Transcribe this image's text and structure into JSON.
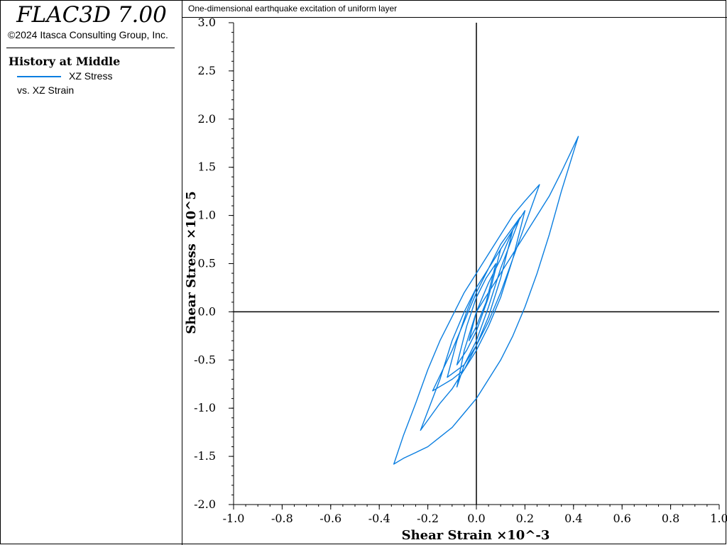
{
  "app": {
    "title": "FLAC3D 7.00",
    "copyright": "©2024 Itasca Consulting Group, Inc."
  },
  "legend": {
    "heading": "History at Middle",
    "series_label": "XZ Stress",
    "vs_label": "vs. XZ Strain",
    "color": "#0a7ee0"
  },
  "plot": {
    "title": "One-dimensional earthquake excitation of uniform layer"
  },
  "chart_data": {
    "type": "line",
    "title": "One-dimensional earthquake excitation of uniform layer",
    "xlabel": "Shear Strain ×10^-3",
    "ylabel": "Shear Stress ×10^5",
    "xlim": [
      -1.0,
      1.0
    ],
    "ylim": [
      -2.0,
      3.0
    ],
    "x_ticks": [
      -1.0,
      -0.8,
      -0.6,
      -0.4,
      -0.2,
      0.0,
      0.2,
      0.4,
      0.6,
      0.8,
      1.0
    ],
    "x_tick_labels": [
      "-1.0",
      "-0.8",
      "-0.6",
      "-0.4",
      "-0.2",
      "0.0",
      "0.2",
      "0.4",
      "0.6",
      "0.8",
      "1.0"
    ],
    "y_ticks": [
      3.0,
      2.5,
      2.0,
      1.5,
      1.0,
      0.5,
      0.0,
      -0.5,
      -1.0,
      -1.5,
      -2.0
    ],
    "y_tick_labels": [
      "3.0",
      "2.5",
      "2.0",
      "1.5",
      "1.0",
      "0.5",
      "0.0",
      "-0.5",
      "-1.0",
      "-1.5",
      "-2.0"
    ],
    "grid": false,
    "series": [
      {
        "name": "XZ Stress",
        "color": "#0a7ee0",
        "x": [
          0.0,
          0.05,
          0.1,
          0.15,
          0.2,
          0.25,
          0.3,
          0.35,
          0.42,
          0.35,
          0.3,
          0.25,
          0.2,
          0.15,
          0.1,
          0.05,
          0.0,
          -0.05,
          -0.1,
          -0.15,
          -0.2,
          -0.25,
          -0.3,
          -0.34,
          -0.3,
          -0.25,
          -0.2,
          -0.15,
          -0.1,
          -0.05,
          0.0,
          0.05,
          0.1,
          0.15,
          0.2,
          0.26,
          0.2,
          0.15,
          0.1,
          0.05,
          0.0,
          -0.05,
          -0.1,
          -0.15,
          -0.23,
          -0.15,
          -0.1,
          -0.05,
          0.0,
          0.05,
          0.1,
          0.15,
          0.2,
          0.15,
          0.1,
          0.05,
          0.0,
          -0.05,
          -0.1,
          -0.18,
          -0.1,
          -0.05,
          0.0,
          0.05,
          0.1,
          0.18,
          0.1,
          0.05,
          0.0,
          -0.05,
          -0.08,
          -0.05,
          0.0,
          0.05,
          0.1,
          0.15,
          0.1,
          0.05,
          0.0,
          -0.05,
          -0.12,
          -0.08,
          -0.04,
          0.0,
          0.05,
          0.1,
          0.05,
          0.0,
          -0.04,
          -0.08,
          -0.04,
          0.0,
          0.04,
          0.08,
          0.04,
          0.0,
          -0.03,
          0.0
        ],
        "y": [
          0.0,
          0.2,
          0.4,
          0.6,
          0.8,
          1.0,
          1.2,
          1.45,
          1.82,
          1.25,
          0.8,
          0.4,
          0.05,
          -0.25,
          -0.5,
          -0.7,
          -0.9,
          -1.05,
          -1.2,
          -1.3,
          -1.4,
          -1.46,
          -1.52,
          -1.58,
          -1.28,
          -0.95,
          -0.6,
          -0.3,
          -0.05,
          0.2,
          0.4,
          0.6,
          0.8,
          1.0,
          1.15,
          1.32,
          0.9,
          0.55,
          0.2,
          -0.1,
          -0.35,
          -0.6,
          -0.8,
          -0.95,
          -1.23,
          -0.7,
          -0.3,
          0.0,
          0.25,
          0.45,
          0.65,
          0.85,
          1.05,
          0.55,
          0.15,
          -0.15,
          -0.4,
          -0.6,
          -0.7,
          -0.82,
          -0.4,
          -0.1,
          0.2,
          0.45,
          0.7,
          0.98,
          0.45,
          0.05,
          -0.3,
          -0.55,
          -0.78,
          -0.4,
          0.0,
          0.3,
          0.55,
          0.85,
          0.35,
          -0.05,
          -0.35,
          -0.55,
          -0.68,
          -0.3,
          0.0,
          0.25,
          0.45,
          0.65,
          0.15,
          -0.2,
          -0.4,
          -0.55,
          -0.15,
          0.15,
          0.35,
          0.5,
          0.1,
          -0.15,
          -0.3,
          0.0
        ]
      }
    ]
  }
}
